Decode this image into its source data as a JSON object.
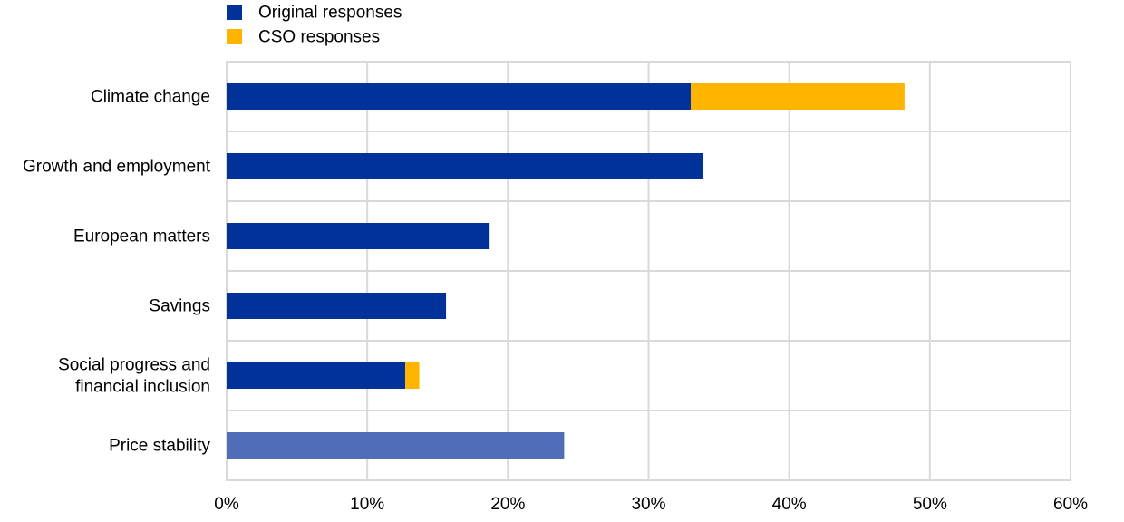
{
  "chart_data": {
    "type": "bar",
    "orientation": "horizontal",
    "stacked": true,
    "categories": [
      [
        "Climate change"
      ],
      [
        "Growth and employment"
      ],
      [
        "European matters"
      ],
      [
        "Savings"
      ],
      [
        "Social progress and",
        "financial inclusion"
      ],
      [
        "Price stability"
      ]
    ],
    "series": [
      {
        "name": "Original responses",
        "color": "#003299",
        "values": [
          33.0,
          33.9,
          18.7,
          15.6,
          12.7,
          24.0
        ]
      },
      {
        "name": "CSO responses",
        "color": "#FFB400",
        "values": [
          15.2,
          0,
          0,
          0,
          1.0,
          0
        ]
      }
    ],
    "bar_color_overrides": [
      {
        "category_index": 5,
        "series_index": 0,
        "color": "#4F6EB7"
      }
    ],
    "xlim": [
      0,
      60
    ],
    "xticks": [
      0,
      10,
      20,
      30,
      40,
      50,
      60
    ],
    "xtick_labels": [
      "0%",
      "10%",
      "20%",
      "30%",
      "40%",
      "50%",
      "60%"
    ],
    "grid": true,
    "legend_position": "top-left"
  }
}
